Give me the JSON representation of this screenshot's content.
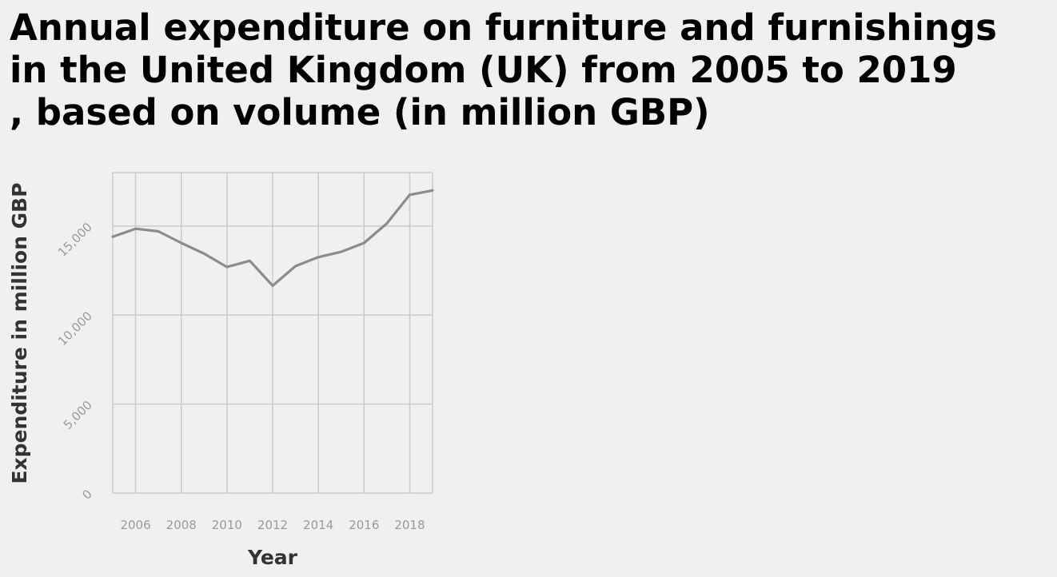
{
  "chart_data": {
    "type": "line",
    "title_lines": [
      "Annual expenditure on furniture and furnishings",
      "in the United Kingdom (UK) from 2005 to 2019",
      ", based on volume (in million GBP)"
    ],
    "xlabel": "Year",
    "ylabel": "Expenditure in million GBP",
    "x": [
      2005,
      2006,
      2007,
      2008,
      2009,
      2010,
      2011,
      2012,
      2013,
      2014,
      2015,
      2016,
      2017,
      2018,
      2019
    ],
    "series": [
      {
        "values": [
          14400,
          14850,
          14700,
          14050,
          13450,
          12700,
          13050,
          11650,
          12750,
          13250,
          13550,
          14050,
          15150,
          16750,
          17000
        ],
        "color": "#8c8c8c"
      }
    ],
    "xlim": [
      2005,
      2019
    ],
    "ylim": [
      0,
      18000
    ],
    "x_ticks": [
      2006,
      2008,
      2010,
      2012,
      2014,
      2016,
      2018
    ],
    "x_tick_labels": [
      "2006",
      "2008",
      "2010",
      "2012",
      "2014",
      "2016",
      "2018"
    ],
    "y_ticks": [
      0,
      5000,
      10000,
      15000
    ],
    "y_tick_labels": [
      "0",
      "5,000",
      "10,000",
      "15,000"
    ],
    "grid": true,
    "grid_color": "#cbcbcb",
    "background_color": "#f0f0f0"
  }
}
